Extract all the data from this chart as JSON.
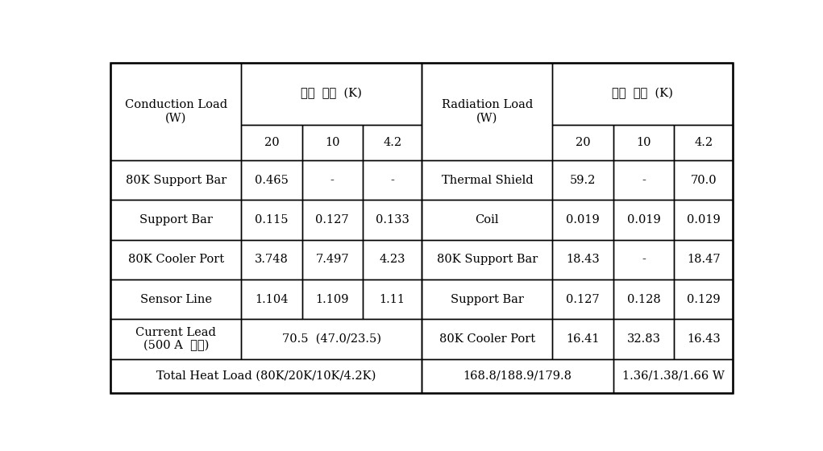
{
  "bg_color": "#ffffff",
  "border_color": "#000000",
  "left_header_label": "Conduction Load\n(W)",
  "left_header_temp": "운전  온도  (K)",
  "right_header_label": "Radiation Load\n(W)",
  "right_header_temp": "운전  온도  (K)",
  "temp_cols": [
    "20",
    "10",
    "4.2"
  ],
  "left_rows": [
    [
      "80K Support Bar",
      "0.465",
      "-",
      "-"
    ],
    [
      "Support Bar",
      "0.115",
      "0.127",
      "0.133"
    ],
    [
      "80K Cooler Port",
      "3.748",
      "7.497",
      "4.23"
    ],
    [
      "Sensor Line",
      "1.104",
      "1.109",
      "1.11"
    ],
    [
      "Current Lead\n(500 A  통전)",
      "70.5  (47.0/23.5)",
      "",
      ""
    ]
  ],
  "right_rows": [
    [
      "Thermal Shield",
      "59.2",
      "-",
      "70.0"
    ],
    [
      "Coil",
      "0.019",
      "0.019",
      "0.019"
    ],
    [
      "80K Support Bar",
      "18.43",
      "-",
      "18.47"
    ],
    [
      "Support Bar",
      "0.127",
      "0.128",
      "0.129"
    ],
    [
      "80K Cooler Port",
      "16.41",
      "32.83",
      "16.43"
    ]
  ],
  "footer_left_label": "Total Heat Load (80K/20K/10K/4.2K)",
  "footer_mid": "168.8/188.9/179.8",
  "footer_right": "1.36/1.38/1.66 W",
  "outer_lw": 1.8,
  "inner_lw": 1.0,
  "fontsize": 10.5
}
